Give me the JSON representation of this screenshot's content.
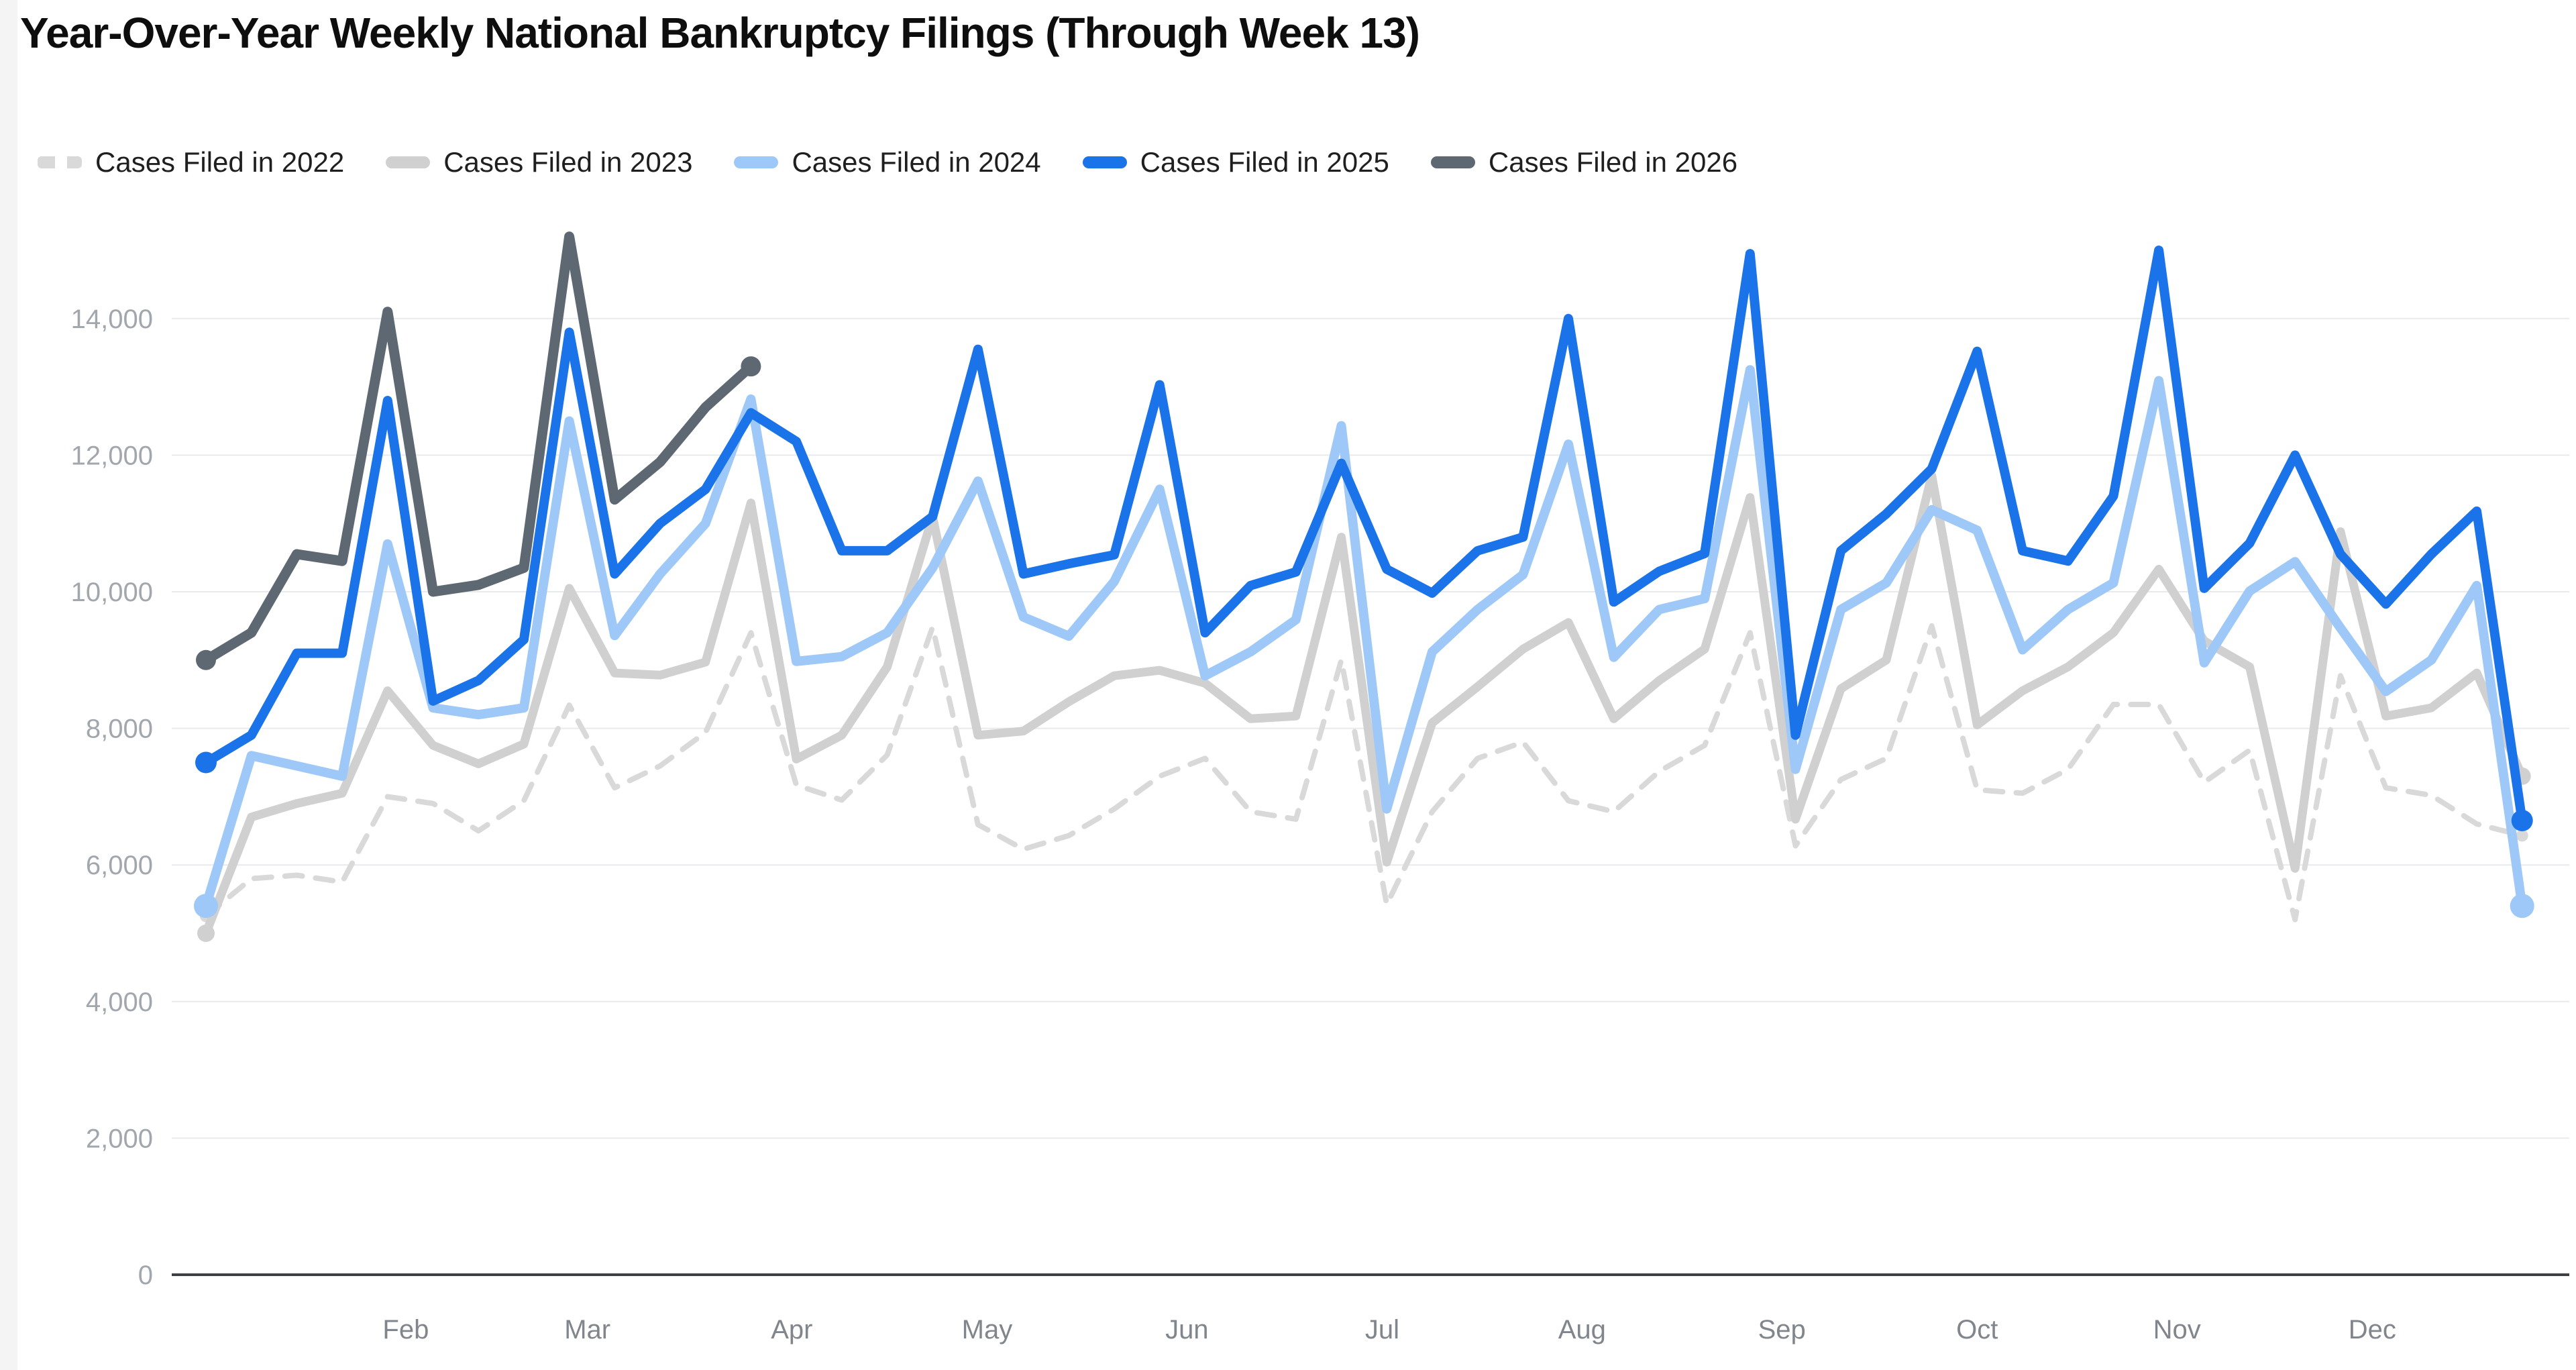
{
  "title": "Year-Over-Year Weekly National Bankruptcy Filings (Through Week 13)",
  "chart_data": {
    "type": "line",
    "title": "Year-Over-Year Weekly National Bankruptcy Filings (Through Week 13)",
    "x_unit": "week of year",
    "weeks_per_year": 52,
    "current_year_weeks": 13,
    "grid": "horizontal-only",
    "legend_position": "top",
    "colors": {
      "grid_line": "#e8eaed",
      "axis_line": "#3c4043",
      "y_tick_text": "#a2a7ad",
      "x_tick_text": "#80868b",
      "title_text": "#0e0e0e"
    },
    "y_axis": {
      "range": [
        0,
        15400
      ],
      "tick_values": [
        0,
        2000,
        4000,
        6000,
        8000,
        10000,
        12000,
        14000
      ],
      "tick_labels": [
        "0",
        "2,000",
        "4,000",
        "6,000",
        "8,000",
        "10,000",
        "12,000",
        "14,000"
      ]
    },
    "x_axis": {
      "months": [
        {
          "label": "Feb",
          "week": 5.4
        },
        {
          "label": "Mar",
          "week": 9.4
        },
        {
          "label": "Apr",
          "week": 13.9
        },
        {
          "label": "May",
          "week": 18.2
        },
        {
          "label": "Jun",
          "week": 22.6
        },
        {
          "label": "Jul",
          "week": 26.9
        },
        {
          "label": "Aug",
          "week": 31.3
        },
        {
          "label": "Sep",
          "week": 35.7
        },
        {
          "label": "Oct",
          "week": 40.0
        },
        {
          "label": "Nov",
          "week": 44.4
        },
        {
          "label": "Dec",
          "week": 48.7
        }
      ]
    },
    "series": [
      {
        "name": "Cases Filed in 2022",
        "year": 2022,
        "color": "#d9d9d9",
        "style": "dashed",
        "stroke_width": 8,
        "dot_radius": 9,
        "values": [
          5250,
          5800,
          5850,
          5750,
          7000,
          6900,
          6500,
          6940,
          8340,
          7130,
          7450,
          7940,
          9400,
          7170,
          6950,
          7610,
          9480,
          6590,
          6230,
          6430,
          6820,
          7300,
          7560,
          6780,
          6670,
          9000,
          5420,
          6780,
          7560,
          7800,
          6940,
          6780,
          7370,
          7750,
          9400,
          6280,
          7250,
          7560,
          9500,
          7100,
          7050,
          7400,
          8350,
          8350,
          7210,
          7680,
          5200,
          8770,
          7130,
          7020,
          6600,
          6430
        ]
      },
      {
        "name": "Cases Filed in 2023",
        "year": 2023,
        "color": "#d0d0d0",
        "style": "solid",
        "stroke_width": 13,
        "dot_radius": 13,
        "values": [
          5000,
          6700,
          6900,
          7050,
          8550,
          7750,
          7480,
          7770,
          10050,
          8810,
          8780,
          8970,
          11300,
          7550,
          7900,
          8900,
          11100,
          7900,
          7960,
          8390,
          8770,
          8850,
          8660,
          8140,
          8180,
          10800,
          6040,
          8080,
          8610,
          9160,
          9550,
          8140,
          8700,
          9160,
          11380,
          6670,
          8580,
          9000,
          11700,
          8050,
          8550,
          8900,
          9400,
          10330,
          9280,
          8900,
          5950,
          10880,
          8180,
          8300,
          8810,
          7300
        ]
      },
      {
        "name": "Cases Filed in 2024",
        "year": 2024,
        "color": "#9ec8f7",
        "style": "solid",
        "stroke_width": 14,
        "dot_radius": 18,
        "values": [
          5400,
          7600,
          7450,
          7300,
          10700,
          8300,
          8200,
          8300,
          12500,
          9360,
          10260,
          11000,
          12820,
          8980,
          9050,
          9400,
          10350,
          11620,
          9630,
          9350,
          10150,
          11500,
          8770,
          9120,
          9590,
          12430,
          6820,
          9120,
          9740,
          10250,
          12160,
          9040,
          9740,
          9900,
          13250,
          7400,
          9740,
          10130,
          11200,
          10900,
          9150,
          9740,
          10130,
          13090,
          8960,
          10010,
          10440,
          9470,
          8540,
          9000,
          10090,
          5400
        ]
      },
      {
        "name": "Cases Filed in 2025",
        "year": 2025,
        "color": "#1a73e8",
        "style": "solid",
        "stroke_width": 14,
        "dot_radius": 16,
        "values": [
          7500,
          7900,
          9100,
          9100,
          12800,
          8400,
          8700,
          9300,
          13800,
          10260,
          11000,
          11500,
          12620,
          12200,
          10600,
          10600,
          11100,
          13550,
          10260,
          10410,
          10540,
          13030,
          9400,
          10090,
          10290,
          11880,
          10330,
          9980,
          10600,
          10800,
          14000,
          9850,
          10300,
          10560,
          14950,
          7900,
          10600,
          11140,
          11800,
          13520,
          10600,
          10450,
          11400,
          15000,
          10050,
          10710,
          12000,
          10550,
          9820,
          10550,
          11180,
          6650
        ]
      },
      {
        "name": "Cases Filed in 2026",
        "year": 2026,
        "color": "#5d6872",
        "style": "solid",
        "stroke_width": 15,
        "dot_radius": 15,
        "values": [
          9000,
          9400,
          10550,
          10450,
          14100,
          10000,
          10100,
          10350,
          15200,
          11350,
          11900,
          12700,
          13300
        ]
      }
    ]
  }
}
